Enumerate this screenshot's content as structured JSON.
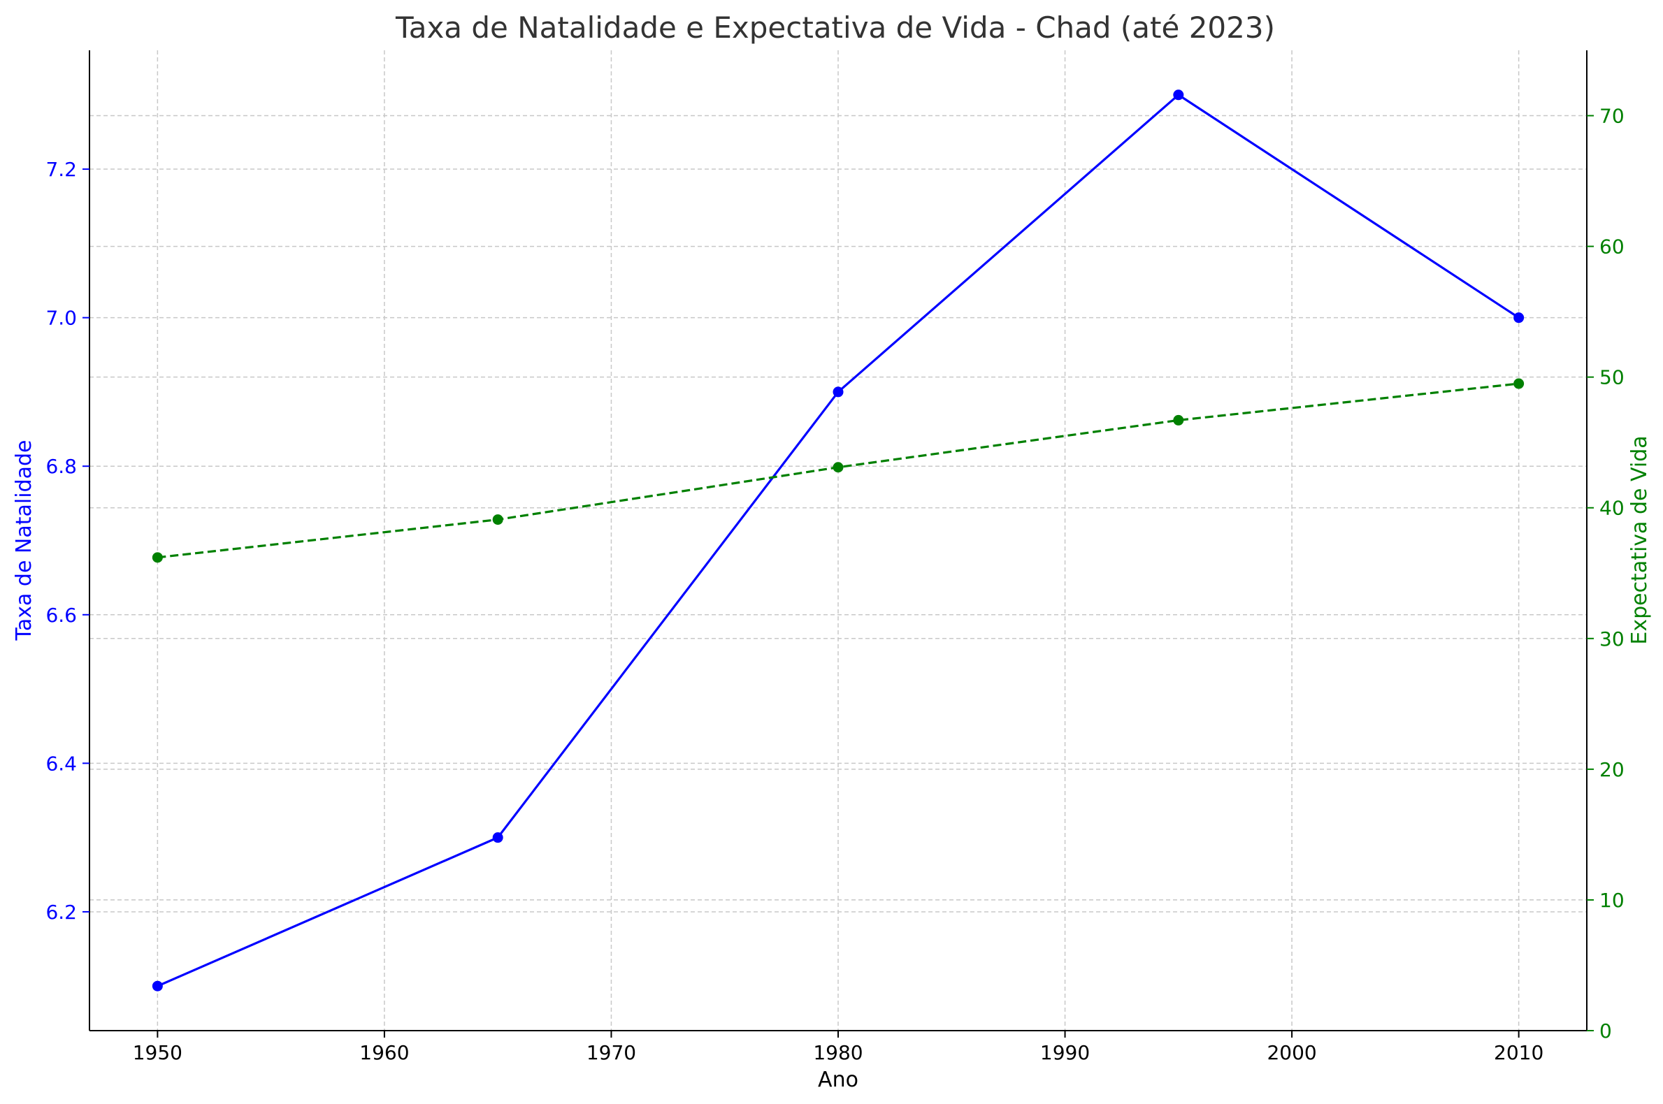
{
  "chart_data": {
    "type": "line",
    "title": "Taxa de Natalidade e Expectativa de Vida - Chad (até 2023)",
    "xlabel": "Ano",
    "ylabel_left": "Taxa de Natalidade",
    "ylabel_right": "Expectativa de Vida",
    "x": [
      1950,
      1965,
      1980,
      1995,
      2010
    ],
    "xlim": [
      1947,
      2013
    ],
    "x_ticks": [
      1950,
      1960,
      1970,
      1980,
      1990,
      2000,
      2010
    ],
    "ylim_left": [
      6.04,
      7.36
    ],
    "y_ticks_left": [
      "6.2",
      "6.4",
      "6.6",
      "6.8",
      "7.0",
      "7.2"
    ],
    "ylim_right": [
      0,
      75
    ],
    "y_ticks_right": [
      "0",
      "10",
      "20",
      "30",
      "40",
      "50",
      "60",
      "70"
    ],
    "grid": true,
    "series": [
      {
        "name": "Taxa de Natalidade",
        "axis": "left",
        "color": "#0000ff",
        "style": "solid",
        "marker": "circle",
        "values": [
          6.1,
          6.3,
          6.9,
          7.3,
          7.0
        ]
      },
      {
        "name": "Expectativa de Vida",
        "axis": "right",
        "color": "#008000",
        "style": "dashed",
        "marker": "circle",
        "values": [
          36.2,
          39.1,
          43.1,
          46.7,
          49.5
        ]
      }
    ]
  }
}
